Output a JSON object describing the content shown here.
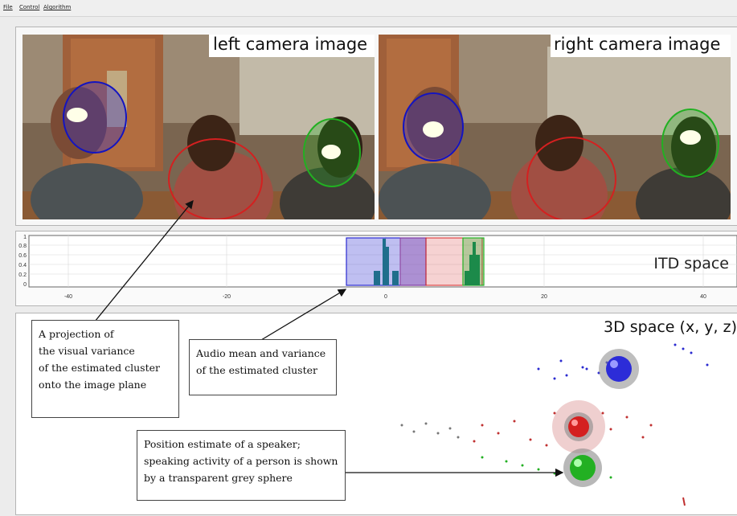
{
  "menu": [
    "File",
    "Control",
    "Algorithm"
  ],
  "cameras": {
    "left_label": "left camera image",
    "right_label": "right camera image"
  },
  "itd": {
    "label": "ITD space",
    "y_ticks": [
      "1",
      "0.8",
      "0.6",
      "0.4",
      "0.2",
      "0"
    ],
    "x_ticks": [
      "-40",
      "-20",
      "0",
      "20",
      "40"
    ]
  },
  "space": {
    "label": "3D space (x, y, z)"
  },
  "callouts": {
    "projection": [
      "A projection of",
      "the visual variance",
      "of the estimated cluster",
      "onto the image plane"
    ],
    "audio": [
      "Audio mean and variance",
      "of the estimated cluster"
    ],
    "position": [
      "Position estimate of a speaker;",
      "speaking activity of a person is shown",
      "by a transparent grey sphere"
    ]
  },
  "colors": {
    "blue": "#2a2ad0",
    "red": "#d42020",
    "green": "#22b022",
    "teal": "#1f6e8c"
  }
}
